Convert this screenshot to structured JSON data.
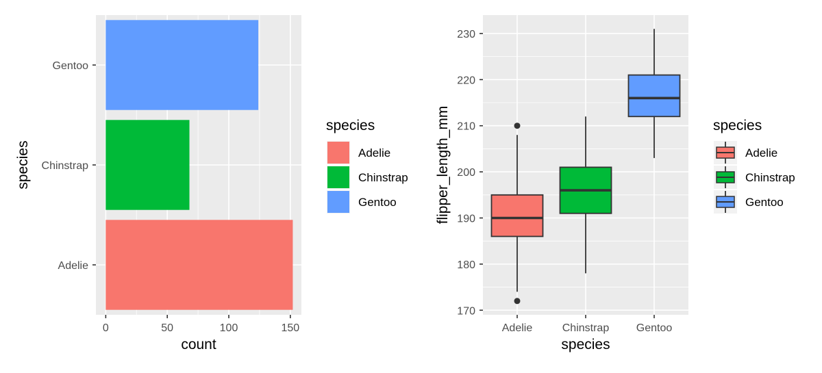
{
  "chart_data": [
    {
      "type": "bar",
      "orientation": "horizontal",
      "categories": [
        "Adelie",
        "Chinstrap",
        "Gentoo"
      ],
      "values": [
        152,
        68,
        124
      ],
      "xlabel": "count",
      "ylabel": "species",
      "xlim": [
        -8,
        159
      ],
      "x_ticks": [
        0,
        50,
        100,
        150
      ],
      "grid": true,
      "legend": {
        "title": "species",
        "position": "right",
        "entries": [
          "Adelie",
          "Chinstrap",
          "Gentoo"
        ]
      },
      "colors": {
        "Adelie": "#F8766D",
        "Chinstrap": "#00BA38",
        "Gentoo": "#619CFF"
      }
    },
    {
      "type": "box",
      "categories": [
        "Adelie",
        "Chinstrap",
        "Gentoo"
      ],
      "boxes": [
        {
          "category": "Adelie",
          "q1": 186,
          "median": 190,
          "q3": 195,
          "whisker_low": 174,
          "whisker_high": 208,
          "outliers": [
            172,
            210
          ]
        },
        {
          "category": "Chinstrap",
          "q1": 191,
          "median": 196,
          "q3": 201,
          "whisker_low": 178,
          "whisker_high": 212,
          "outliers": []
        },
        {
          "category": "Gentoo",
          "q1": 212,
          "median": 216,
          "q3": 221,
          "whisker_low": 203,
          "whisker_high": 231,
          "outliers": []
        }
      ],
      "xlabel": "species",
      "ylabel": "flipper_length_mm",
      "ylim": [
        169,
        234
      ],
      "y_ticks": [
        170,
        180,
        190,
        200,
        210,
        220,
        230
      ],
      "grid": true,
      "legend": {
        "title": "species",
        "position": "right",
        "entries": [
          "Adelie",
          "Chinstrap",
          "Gentoo"
        ]
      },
      "colors": {
        "Adelie": "#F8766D",
        "Chinstrap": "#00BA38",
        "Gentoo": "#619CFF"
      }
    }
  ]
}
